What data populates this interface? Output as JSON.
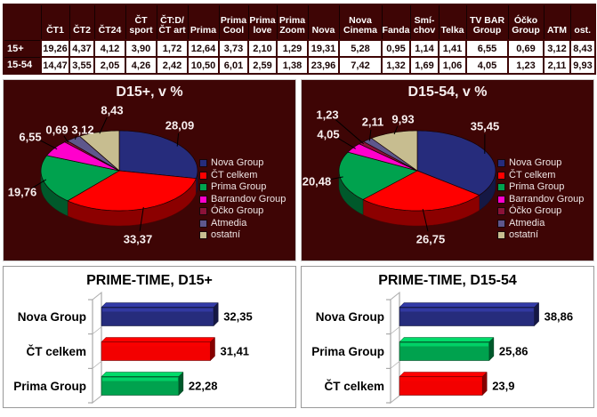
{
  "colors": {
    "panel_bg": "#3E0505",
    "table_header_bg": "#3E0505",
    "table_header_text": "#FFFFFF",
    "table_value_text": "#1B0505",
    "legend_text": "#EFE6E6",
    "navy": "#262C7C",
    "red": "#FF0000",
    "green": "#00A24E",
    "magenta": "#FF00CC",
    "ocko_maroon": "#8B1238",
    "atmedia_slate": "#5E578C",
    "ostatni_tan": "#C7BD90"
  },
  "chart_data": [
    {
      "type": "table",
      "corner": "",
      "columns": [
        "ČT1",
        "ČT2",
        "ČT24",
        "ČT\nsport",
        "ČT:D/\nČT art",
        "Prima",
        "Prima\nCool",
        "Prima\nlove",
        "Prima\nZoom",
        "Nova",
        "Nova\nCinema",
        "Fanda",
        "Smí-\nchov",
        "Telka",
        "TV BAR\nGroup",
        "Óčko\nGroup",
        "ATM",
        "ost."
      ],
      "rows": [
        {
          "label": "15+",
          "values": [
            "19,26",
            "4,37",
            "4,12",
            "3,90",
            "1,72",
            "12,64",
            "3,73",
            "2,10",
            "1,29",
            "19,31",
            "5,28",
            "0,95",
            "1,14",
            "1,41",
            "6,55",
            "0,69",
            "3,12",
            "8,43"
          ]
        },
        {
          "label": "15-54",
          "values": [
            "14,47",
            "3,55",
            "2,05",
            "4,26",
            "2,42",
            "10,50",
            "6,01",
            "2,59",
            "1,38",
            "23,96",
            "7,42",
            "1,32",
            "1,69",
            "1,06",
            "4,05",
            "1,23",
            "2,11",
            "9,93"
          ]
        }
      ]
    },
    {
      "type": "pie",
      "style": "3d",
      "title": "D15+, v %",
      "labels": [
        "Nova Group",
        "ČT celkem",
        "Prima Group",
        "Barrandov Group",
        "Óčko Group",
        "Atmedia",
        "ostatní"
      ],
      "values": [
        28.09,
        33.37,
        19.76,
        6.55,
        0.69,
        3.12,
        8.43
      ],
      "display_values": [
        "28,09",
        "33,37",
        "19,76",
        "6,55",
        "0,69",
        "3,12",
        "8,43"
      ],
      "colors": [
        "#262C7C",
        "#FF0000",
        "#00A24E",
        "#FF00CC",
        "#8B1238",
        "#5E578C",
        "#C7BD90"
      ],
      "legend_position": "right"
    },
    {
      "type": "pie",
      "style": "3d",
      "title": "D15-54, v %",
      "labels": [
        "Nova Group",
        "ČT celkem",
        "Prima Group",
        "Barrandov Group",
        "Óčko Group",
        "Atmedia",
        "ostatní"
      ],
      "values": [
        35.45,
        26.75,
        20.48,
        4.05,
        1.23,
        2.11,
        9.93
      ],
      "display_values": [
        "35,45",
        "26,75",
        "20,48",
        "4,05",
        "1,23",
        "2,11",
        "9,93"
      ],
      "colors": [
        "#262C7C",
        "#FF0000",
        "#00A24E",
        "#FF00CC",
        "#8B1238",
        "#5E578C",
        "#C7BD90"
      ],
      "legend_position": "right"
    },
    {
      "type": "bar",
      "style": "3d",
      "orientation": "horizontal",
      "title": "PRIME-TIME, D15+",
      "categories": [
        "Nova Group",
        "ČT celkem",
        "Prima Group"
      ],
      "values": [
        32.35,
        31.41,
        22.28
      ],
      "display_values": [
        "32,35",
        "31,41",
        "22,28"
      ],
      "colors": [
        "#262C7C",
        "#F30000",
        "#00A24E"
      ],
      "xlim": [
        0,
        50
      ]
    },
    {
      "type": "bar",
      "style": "3d",
      "orientation": "horizontal",
      "title": "PRIME-TIME, D15-54",
      "categories": [
        "Nova Group",
        "Prima Group",
        "ČT celkem"
      ],
      "values": [
        38.86,
        25.86,
        23.9
      ],
      "display_values": [
        "38,86",
        "25,86",
        "23,9"
      ],
      "colors": [
        "#262C7C",
        "#00A24E",
        "#F30000"
      ],
      "xlim": [
        0,
        50
      ]
    }
  ]
}
